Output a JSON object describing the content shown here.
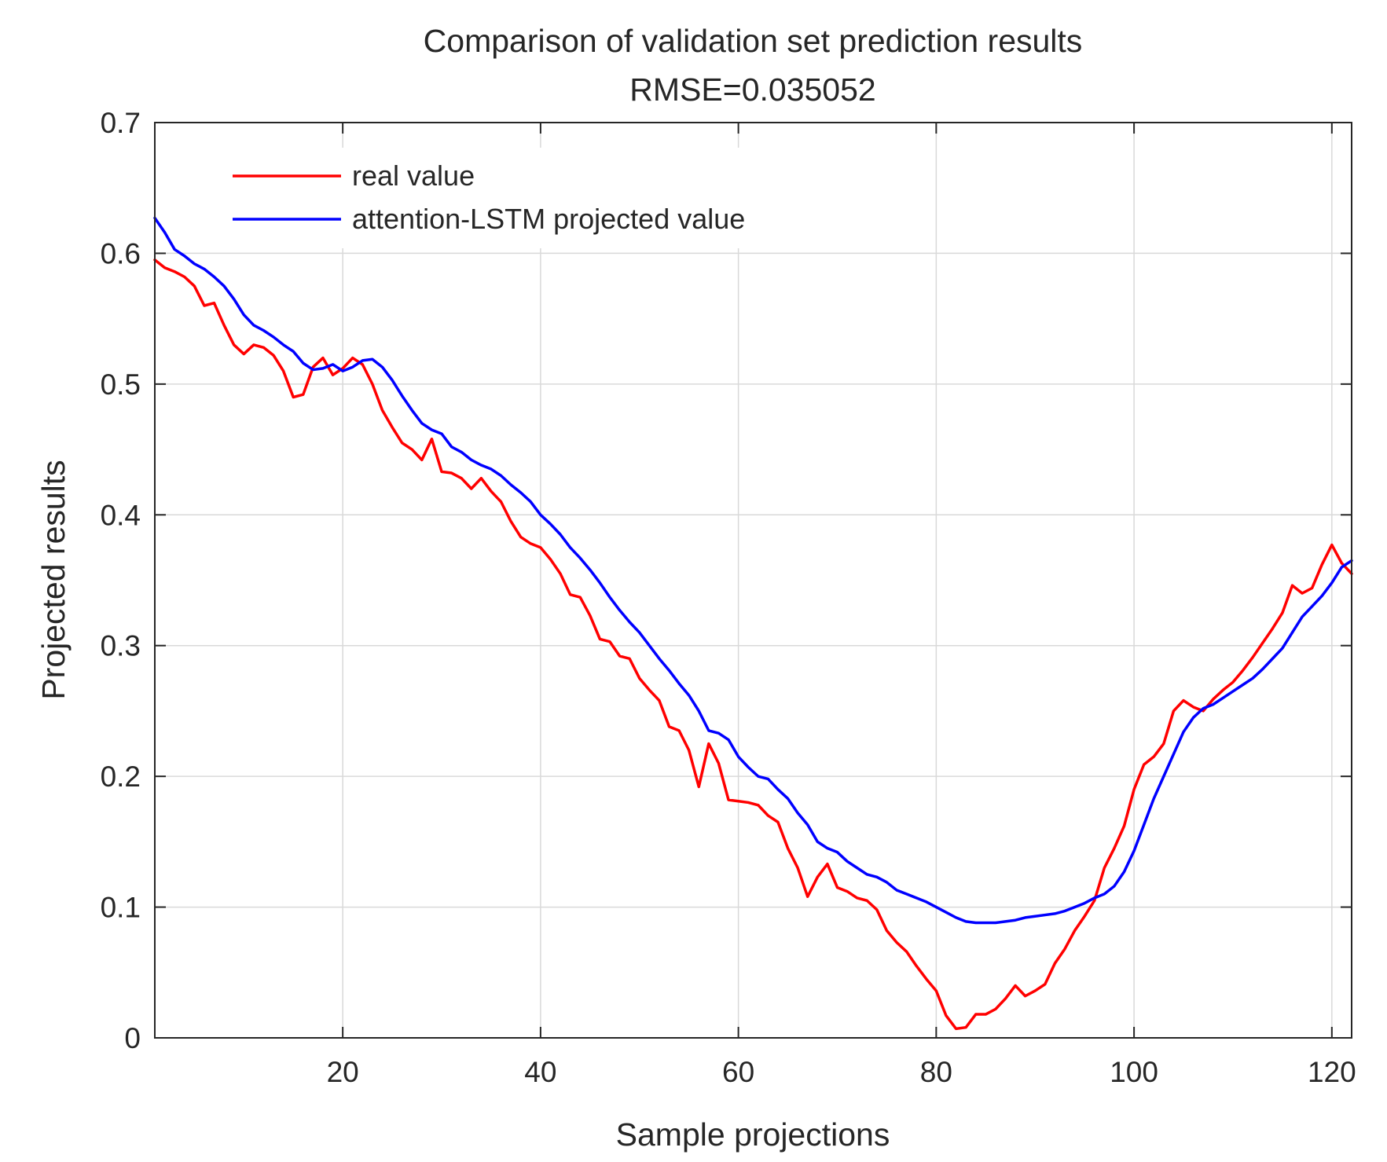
{
  "chart_data": {
    "type": "line",
    "title": "Comparison of validation set prediction results",
    "subtitle": "RMSE=0.035052",
    "xlabel": "Sample projections",
    "ylabel": "Projected results",
    "xlim": [
      1,
      122
    ],
    "ylim": [
      0,
      0.7
    ],
    "xticks": [
      20,
      40,
      60,
      80,
      100,
      120
    ],
    "xtick_labels": [
      "20",
      "40",
      "60",
      "80",
      "100",
      "120"
    ],
    "yticks": [
      0,
      0.1,
      0.2,
      0.3,
      0.4,
      0.5,
      0.6,
      0.7
    ],
    "ytick_labels": [
      "0",
      "0.1",
      "0.2",
      "0.3",
      "0.4",
      "0.5",
      "0.6",
      "0.7"
    ],
    "grid": true,
    "legend_position": "top-left",
    "x": [
      1,
      2,
      3,
      4,
      5,
      6,
      7,
      8,
      9,
      10,
      11,
      12,
      13,
      14,
      15,
      16,
      17,
      18,
      19,
      20,
      21,
      22,
      23,
      24,
      25,
      26,
      27,
      28,
      29,
      30,
      31,
      32,
      33,
      34,
      35,
      36,
      37,
      38,
      39,
      40,
      41,
      42,
      43,
      44,
      45,
      46,
      47,
      48,
      49,
      50,
      51,
      52,
      53,
      54,
      55,
      56,
      57,
      58,
      59,
      60,
      61,
      62,
      63,
      64,
      65,
      66,
      67,
      68,
      69,
      70,
      71,
      72,
      73,
      74,
      75,
      76,
      77,
      78,
      79,
      80,
      81,
      82,
      83,
      84,
      85,
      86,
      87,
      88,
      89,
      90,
      91,
      92,
      93,
      94,
      95,
      96,
      97,
      98,
      99,
      100,
      101,
      102,
      103,
      104,
      105,
      106,
      107,
      108,
      109,
      110,
      111,
      112,
      113,
      114,
      115,
      116,
      117,
      118,
      119,
      120,
      121,
      122
    ],
    "series": [
      {
        "name": "real value",
        "color": "#ff0000",
        "values": [
          0.595,
          0.589,
          0.586,
          0.582,
          0.575,
          0.56,
          0.562,
          0.545,
          0.53,
          0.523,
          0.53,
          0.528,
          0.522,
          0.51,
          0.49,
          0.492,
          0.513,
          0.52,
          0.507,
          0.512,
          0.52,
          0.515,
          0.5,
          0.48,
          0.467,
          0.455,
          0.45,
          0.442,
          0.458,
          0.433,
          0.432,
          0.428,
          0.42,
          0.428,
          0.418,
          0.41,
          0.395,
          0.383,
          0.378,
          0.375,
          0.366,
          0.355,
          0.339,
          0.337,
          0.323,
          0.305,
          0.303,
          0.292,
          0.29,
          0.275,
          0.266,
          0.258,
          0.238,
          0.235,
          0.22,
          0.192,
          0.225,
          0.21,
          0.182,
          0.181,
          0.18,
          0.178,
          0.17,
          0.165,
          0.145,
          0.13,
          0.108,
          0.123,
          0.133,
          0.115,
          0.112,
          0.107,
          0.105,
          0.098,
          0.082,
          0.073,
          0.066,
          0.055,
          0.045,
          0.036,
          0.017,
          0.007,
          0.008,
          0.018,
          0.018,
          0.022,
          0.03,
          0.04,
          0.032,
          0.036,
          0.041,
          0.057,
          0.068,
          0.082,
          0.093,
          0.105,
          0.13,
          0.145,
          0.162,
          0.19,
          0.209,
          0.215,
          0.225,
          0.25,
          0.258,
          0.253,
          0.25,
          0.259,
          0.266,
          0.272,
          0.281,
          0.291,
          0.302,
          0.313,
          0.325,
          0.346,
          0.34,
          0.344,
          0.362,
          0.377,
          0.363,
          0.355
        ]
      },
      {
        "name": "attention-LSTM projected value",
        "color": "#0000ff",
        "values": [
          0.627,
          0.616,
          0.603,
          0.598,
          0.592,
          0.588,
          0.582,
          0.575,
          0.565,
          0.553,
          0.545,
          0.541,
          0.536,
          0.53,
          0.525,
          0.516,
          0.511,
          0.512,
          0.515,
          0.51,
          0.513,
          0.518,
          0.519,
          0.513,
          0.503,
          0.491,
          0.48,
          0.47,
          0.465,
          0.462,
          0.452,
          0.448,
          0.442,
          0.438,
          0.435,
          0.43,
          0.423,
          0.417,
          0.41,
          0.4,
          0.393,
          0.385,
          0.375,
          0.367,
          0.358,
          0.348,
          0.337,
          0.327,
          0.318,
          0.31,
          0.3,
          0.29,
          0.281,
          0.271,
          0.262,
          0.25,
          0.235,
          0.233,
          0.228,
          0.215,
          0.207,
          0.2,
          0.198,
          0.19,
          0.183,
          0.172,
          0.163,
          0.15,
          0.145,
          0.142,
          0.135,
          0.13,
          0.125,
          0.123,
          0.119,
          0.113,
          0.11,
          0.107,
          0.104,
          0.1,
          0.096,
          0.092,
          0.089,
          0.088,
          0.088,
          0.088,
          0.089,
          0.09,
          0.092,
          0.093,
          0.094,
          0.095,
          0.097,
          0.1,
          0.103,
          0.107,
          0.11,
          0.116,
          0.127,
          0.143,
          0.163,
          0.183,
          0.2,
          0.217,
          0.234,
          0.245,
          0.252,
          0.255,
          0.26,
          0.265,
          0.27,
          0.275,
          0.282,
          0.29,
          0.298,
          0.31,
          0.322,
          0.33,
          0.338,
          0.348,
          0.36,
          0.365
        ]
      }
    ]
  }
}
